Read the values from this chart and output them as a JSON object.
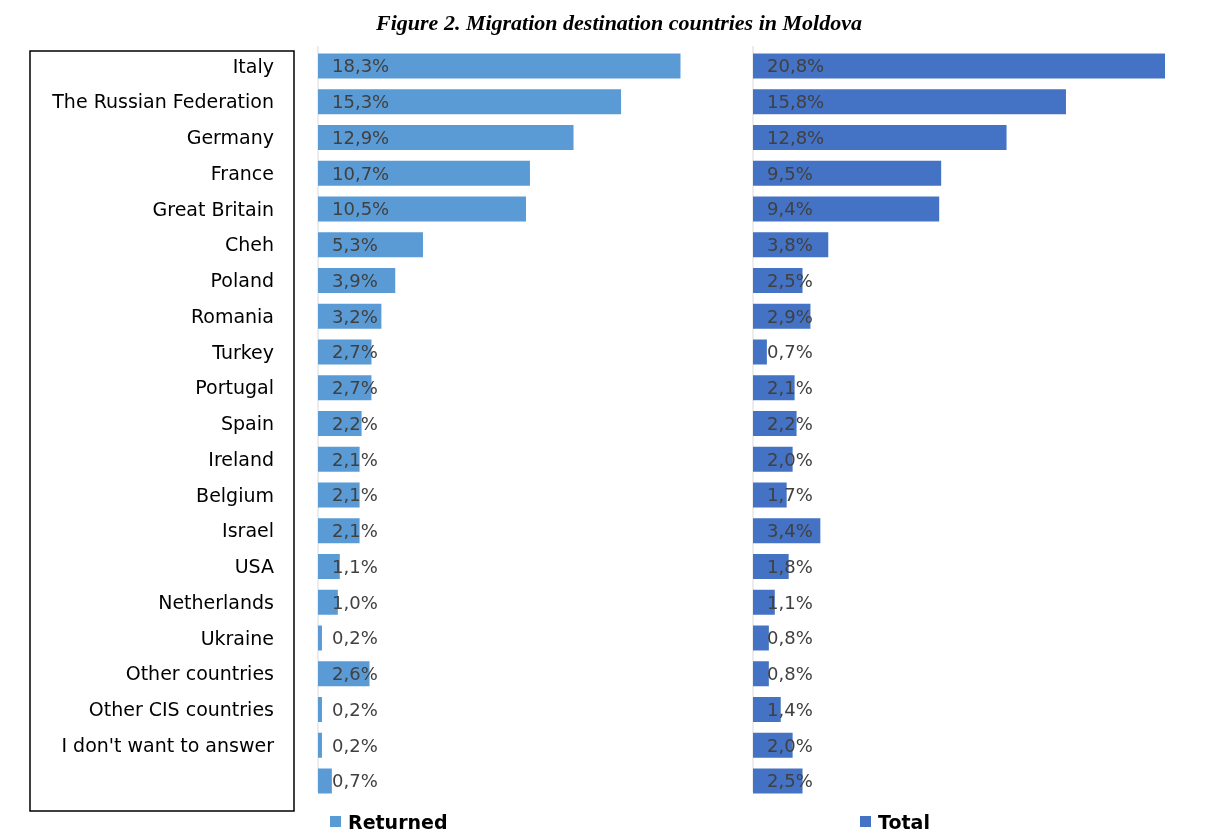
{
  "chart_data": [
    {
      "type": "bar",
      "orientation": "horizontal",
      "title": "Figure 2. Migration destination countries in Moldova",
      "categories": [
        "Italy",
        "The Russian Federation",
        "Germany",
        "France",
        "Great Britain",
        "Cheh",
        "Poland",
        "Romania",
        "Turkey",
        "Portugal",
        "Spain",
        "Ireland",
        "Belgium",
        "Israel",
        "USA",
        "Netherlands",
        "Ukraine",
        "Other countries",
        "Other CIS countries",
        "I don't want to answer",
        null
      ],
      "legend": "bottom",
      "series": [
        {
          "name": "Returned",
          "color": "#5b9bd5",
          "values": [
            18.3,
            15.3,
            12.9,
            10.7,
            10.5,
            5.3,
            3.9,
            3.2,
            2.7,
            2.7,
            2.2,
            2.1,
            2.1,
            2.1,
            1.1,
            1.0,
            0.2,
            2.6,
            0.2,
            0.2,
            0.7
          ],
          "value_labels": [
            "18,3%",
            "15,3%",
            "12,9%",
            "10,7%",
            "10,5%",
            "5,3%",
            "3,9%",
            "3,2%",
            "2,7%",
            "2,7%",
            "2,2%",
            "2,1%",
            "2,1%",
            "2,1%",
            "1,1%",
            "1,0%",
            "0,2%",
            "2,6%",
            "0,2%",
            "0,2%",
            "0,7%"
          ]
        }
      ]
    },
    {
      "type": "bar",
      "orientation": "horizontal",
      "categories": [
        null,
        null,
        null,
        null,
        null,
        null,
        null,
        null,
        null,
        null,
        null,
        null,
        null,
        null,
        null,
        null,
        null,
        null,
        null,
        null,
        null
      ],
      "legend": "bottom",
      "series": [
        {
          "name": "Total",
          "color": "#4472c4",
          "values": [
            20.8,
            15.8,
            12.8,
            9.5,
            9.4,
            3.8,
            2.5,
            2.9,
            0.7,
            2.1,
            2.2,
            2.0,
            1.7,
            3.4,
            1.8,
            1.1,
            0.8,
            0.8,
            1.4,
            2.0,
            2.5
          ],
          "value_labels": [
            "20,8%",
            "15,8%",
            "12,8%",
            "9,5%",
            "9,4%",
            "3,8%",
            "2,5%",
            "2,9%",
            "0,7%",
            "2,1%",
            "2,2%",
            "2,0%",
            "1,7%",
            "3,4%",
            "1,8%",
            "1,1%",
            "0,8%",
            "0,8%",
            "1,4%",
            "2,0%",
            "2,5%"
          ]
        }
      ]
    }
  ]
}
